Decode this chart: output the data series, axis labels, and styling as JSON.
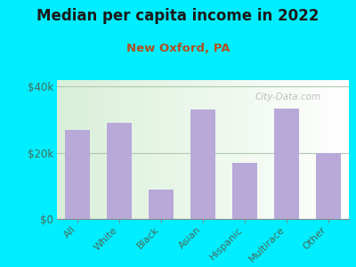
{
  "title": "Median per capita income in 2022",
  "subtitle": "New Oxford, PA",
  "categories": [
    "All",
    "White",
    "Black",
    "Asian",
    "Hispanic",
    "Multirace",
    "Other"
  ],
  "values": [
    27000,
    29000,
    9000,
    33000,
    17000,
    33500,
    20000
  ],
  "bar_color": "#b8a9d9",
  "background_outer": "#00eeff",
  "background_inner_left": "#d6edcc",
  "background_inner_right": "#f5fff5",
  "title_color": "#1a1a1a",
  "subtitle_color": "#b05020",
  "tick_label_color": "#4a6a5a",
  "ytick_labels": [
    "$0",
    "$20k",
    "$40k"
  ],
  "ytick_values": [
    0,
    20000,
    40000
  ],
  "ylim": [
    0,
    42000
  ],
  "watermark": "City-Data.com"
}
